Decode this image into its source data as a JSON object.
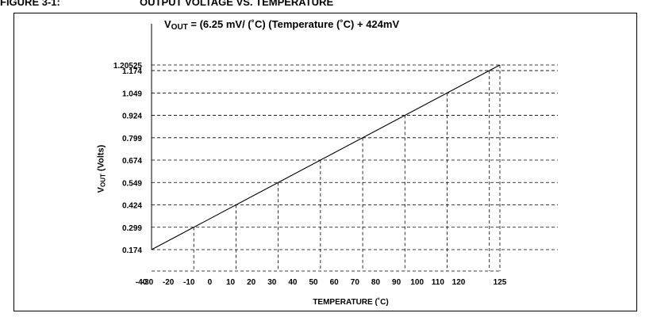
{
  "figure": {
    "number": "FIGURE 3-1:",
    "title": "OUTPUT VOLTAGE VS. TEMPERATURE"
  },
  "chart_data": {
    "type": "line",
    "annotation": {
      "prefix": "V",
      "subscript": "OUT",
      "text": " = (6.25 mV/ (˚C) (Temperature  (˚C) + 424mV"
    },
    "xlabel": "TEMPERATURE (˚C)",
    "ylabel": {
      "main": "V",
      "subscript": "OUT",
      "suffix": " (Volts)"
    },
    "x_ticks": [
      -40,
      -30,
      -20,
      -10,
      0,
      10,
      20,
      30,
      40,
      50,
      60,
      70,
      80,
      90,
      100,
      110,
      120,
      125
    ],
    "x_gridlines": [
      -20,
      0,
      20,
      40,
      60,
      80,
      100,
      120,
      125
    ],
    "y_ticks": [
      "0.174",
      "0.299",
      "0.424",
      "0.549",
      "0.674",
      "0.799",
      "0.924",
      "1.049",
      "1.174",
      "1.20525"
    ],
    "y_gridlines": [
      0.174,
      0.299,
      0.424,
      0.549,
      0.674,
      0.799,
      0.924,
      1.049,
      1.174,
      1.20525
    ],
    "xlim": [
      -40,
      125
    ],
    "ylim": [
      0.174,
      1.20525
    ],
    "grid": "dashed",
    "series": [
      {
        "x": [
          -40,
          125
        ],
        "y": [
          0.174,
          1.20525
        ]
      }
    ]
  }
}
